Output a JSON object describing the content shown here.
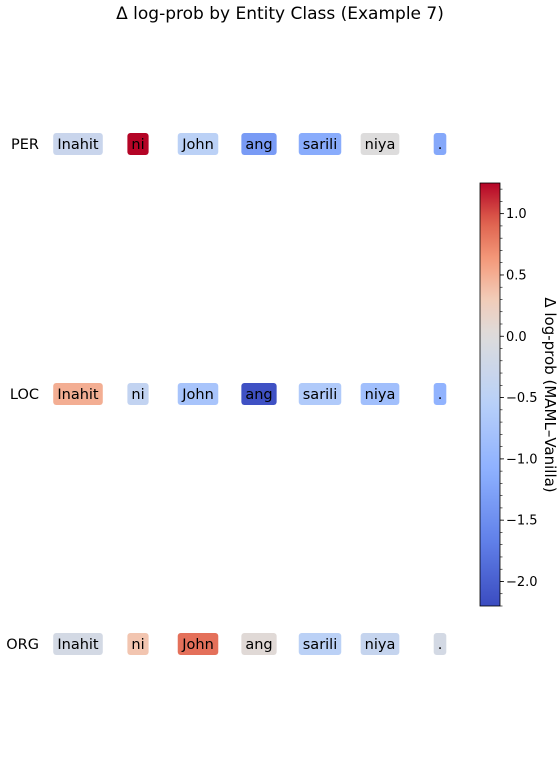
{
  "chart_data": {
    "type": "heatmap",
    "title": "Δ log-prob by Entity Class (Example 7)",
    "tokens": [
      "Inahit",
      "ni",
      "John",
      "ang",
      "sarili",
      "niya",
      "."
    ],
    "rows": [
      {
        "name": "PER",
        "values": [
          -0.3,
          1.25,
          -0.5,
          -1.35,
          -1.15,
          0.0,
          -1.2
        ]
      },
      {
        "name": "LOC",
        "values": [
          0.5,
          -0.4,
          -0.75,
          -2.15,
          -0.65,
          -0.85,
          -1.05
        ]
      },
      {
        "name": "ORG",
        "values": [
          -0.15,
          0.35,
          0.85,
          0.05,
          -0.5,
          -0.35,
          -0.15
        ]
      }
    ],
    "colorbar": {
      "label": "Δ log-prob (MAML–Vanilla)",
      "vmin": -2.2,
      "vmax": 1.25,
      "ticks": [
        "−2.0",
        "−1.5",
        "−1.0",
        "−0.5",
        "0.0",
        "0.5",
        "1.0"
      ],
      "tick_values": [
        -2.0,
        -1.5,
        -1.0,
        -0.5,
        0.0,
        0.5,
        1.0
      ],
      "colormap": "coolwarm"
    }
  }
}
